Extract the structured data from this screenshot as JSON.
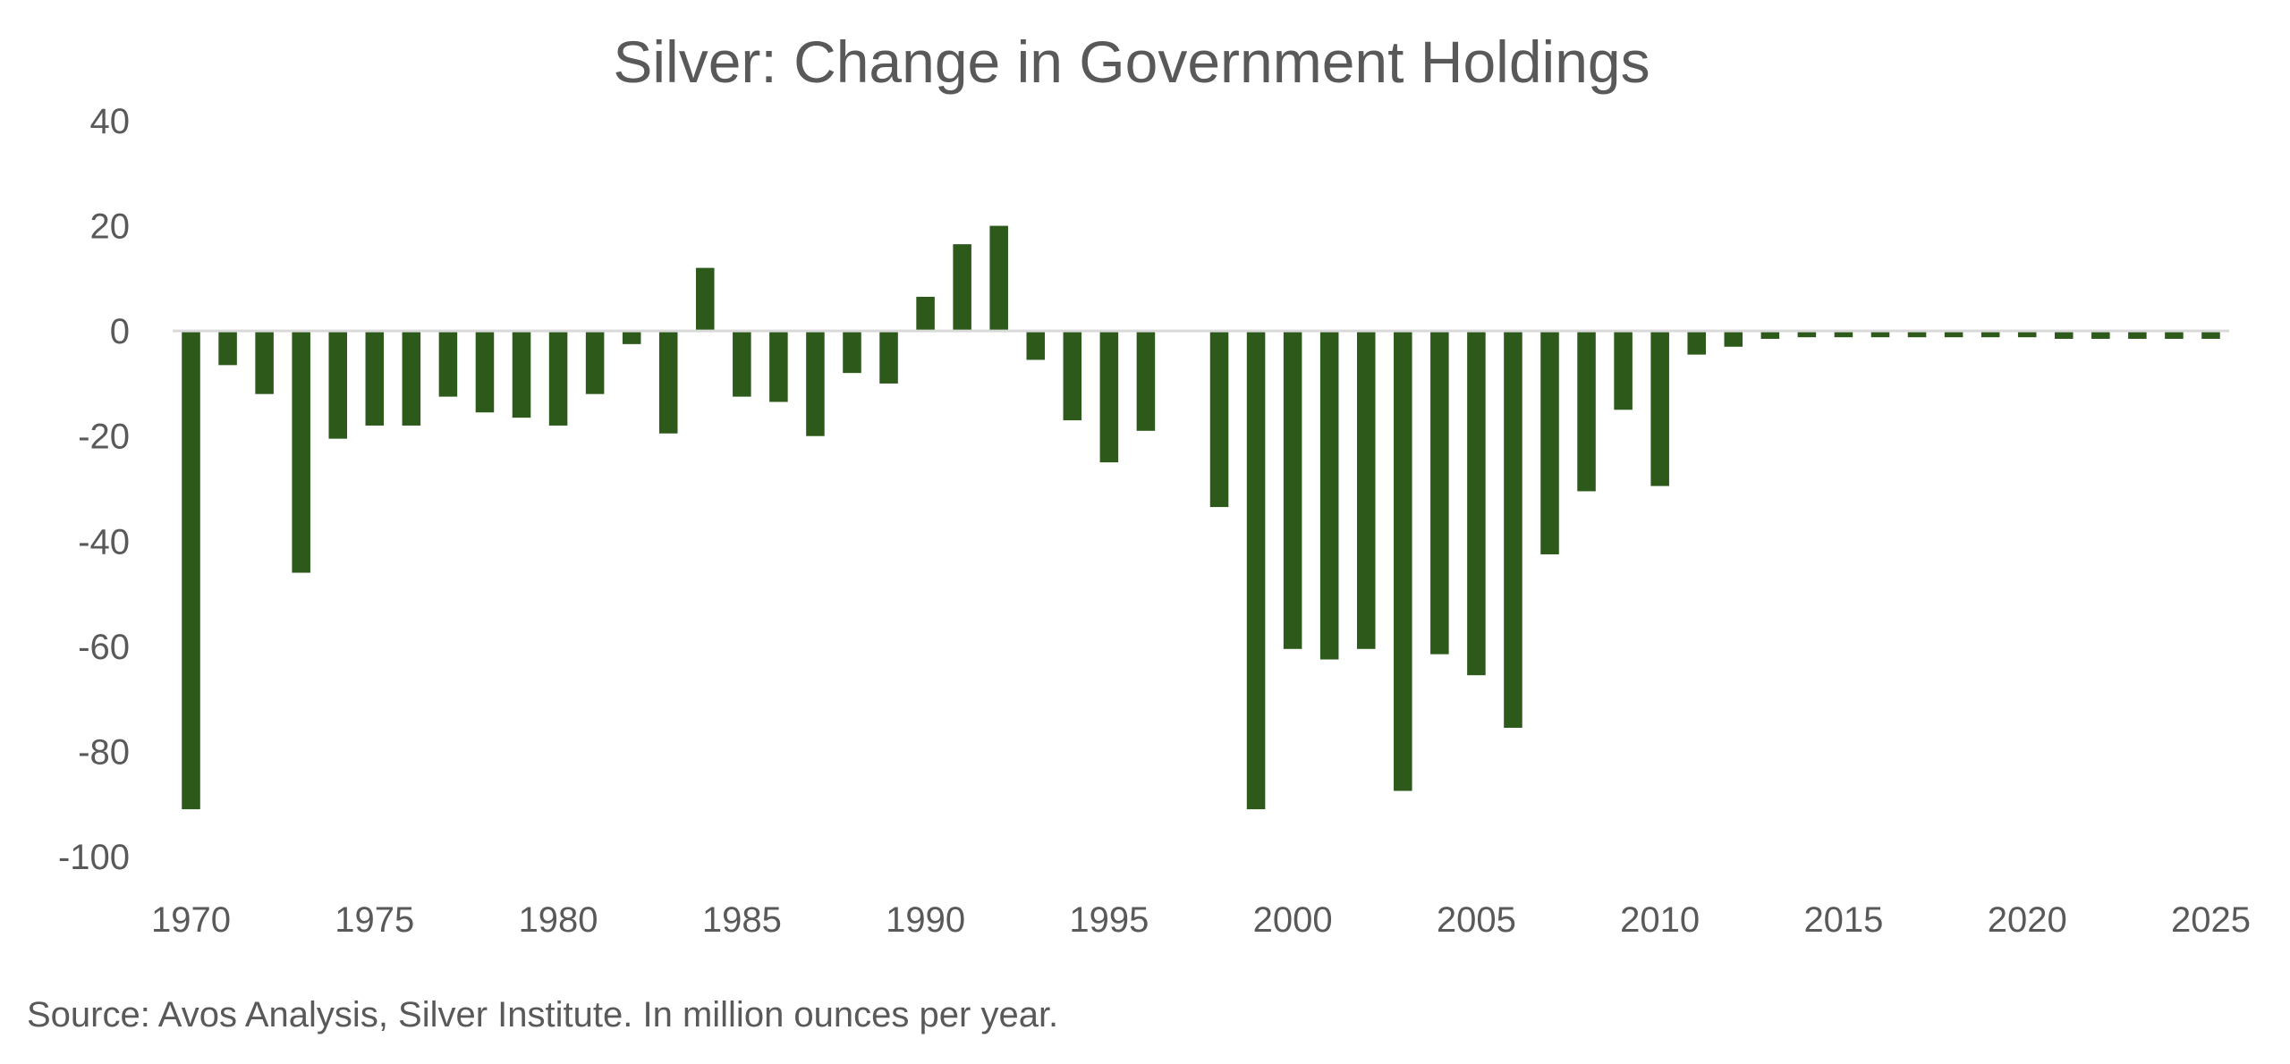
{
  "chart_data": {
    "type": "bar",
    "title": "Silver: Change in Government Holdings",
    "source": "Source: Avos Analysis, Silver Institute. In million ounces per year.",
    "xlabel": "",
    "ylabel": "",
    "ylim": [
      -100,
      40
    ],
    "yticks": [
      "40",
      "20",
      "0",
      "-20",
      "-40",
      "-60",
      "-80",
      "-100"
    ],
    "xticks": [
      "1970",
      "1975",
      "1980",
      "1985",
      "1990",
      "1995",
      "2000",
      "2005",
      "2010",
      "2015",
      "2020",
      "2025"
    ],
    "grid": false,
    "legend": "none",
    "bar_color": "#2d5a1b",
    "axis_color": "#d9d9d9",
    "categories": [
      1970,
      1971,
      1972,
      1973,
      1974,
      1975,
      1976,
      1977,
      1978,
      1979,
      1980,
      1981,
      1982,
      1983,
      1984,
      1985,
      1986,
      1987,
      1988,
      1989,
      1990,
      1991,
      1992,
      1993,
      1994,
      1995,
      1996,
      1997,
      1998,
      1999,
      2000,
      2001,
      2002,
      2003,
      2004,
      2005,
      2006,
      2007,
      2008,
      2009,
      2010,
      2011,
      2012,
      2013,
      2014,
      2015,
      2016,
      2017,
      2018,
      2019,
      2020,
      2021,
      2022,
      2023,
      2024,
      2025
    ],
    "values": [
      -91,
      -6.5,
      -12,
      -46,
      -20.5,
      -18,
      -18,
      -12.5,
      -15.5,
      -16.5,
      -18,
      -12,
      -2.5,
      -19.5,
      12,
      -12.5,
      -13.5,
      -20,
      -8,
      -10,
      6.5,
      16.5,
      20,
      -5.5,
      -17,
      -25,
      -19,
      0,
      -33.5,
      -91,
      -60.5,
      -62.5,
      -60.5,
      -87.5,
      -61.5,
      -65.5,
      -75.5,
      -42.5,
      -30.5,
      -15,
      -29.5,
      -4.5,
      -3,
      -1.5,
      -1.2,
      -1.2,
      -1.2,
      -1.2,
      -1.2,
      -1.2,
      -1.2,
      -1.5,
      -1.5,
      -1.5,
      -1.5,
      -1.5
    ]
  }
}
